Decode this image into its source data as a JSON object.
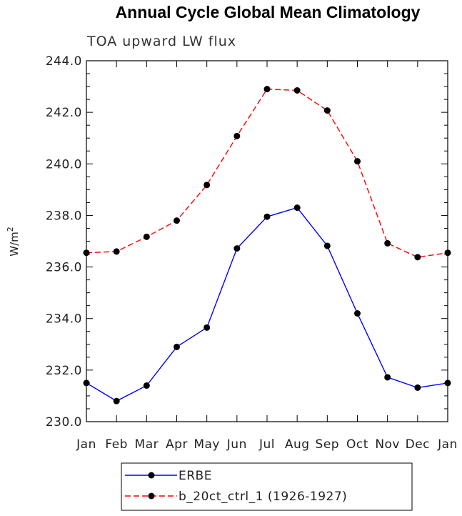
{
  "chart_data": {
    "type": "line",
    "title": "Annual Cycle Global Mean Climatology",
    "subtitle": "TOA upward LW flux",
    "ylabel": "W/m",
    "ylabel_superscript": "2",
    "xlabel": "",
    "categories": [
      "Jan",
      "Feb",
      "Mar",
      "Apr",
      "May",
      "Jun",
      "Jul",
      "Aug",
      "Sep",
      "Oct",
      "Nov",
      "Dec",
      "Jan"
    ],
    "ylim": [
      230.0,
      244.0
    ],
    "yticks": [
      "230.0",
      "232.0",
      "234.0",
      "236.0",
      "238.0",
      "240.0",
      "242.0",
      "244.0"
    ],
    "grid": false,
    "legend_position": "bottom",
    "series": [
      {
        "name": "ERBE",
        "color": "#0000ff",
        "line_style": "solid",
        "marker": "filled-circle",
        "values": [
          231.5,
          230.8,
          231.4,
          232.9,
          233.65,
          236.72,
          237.95,
          238.3,
          236.82,
          234.2,
          231.72,
          231.32,
          231.5
        ]
      },
      {
        "name": "b_20ct_ctrl_1 (1926-1927)",
        "color": "#ff0000",
        "line_style": "dashed",
        "marker": "filled-circle",
        "values": [
          236.55,
          236.6,
          237.17,
          237.8,
          239.18,
          241.08,
          242.9,
          242.85,
          242.07,
          240.1,
          236.92,
          236.38,
          236.55
        ]
      }
    ]
  }
}
